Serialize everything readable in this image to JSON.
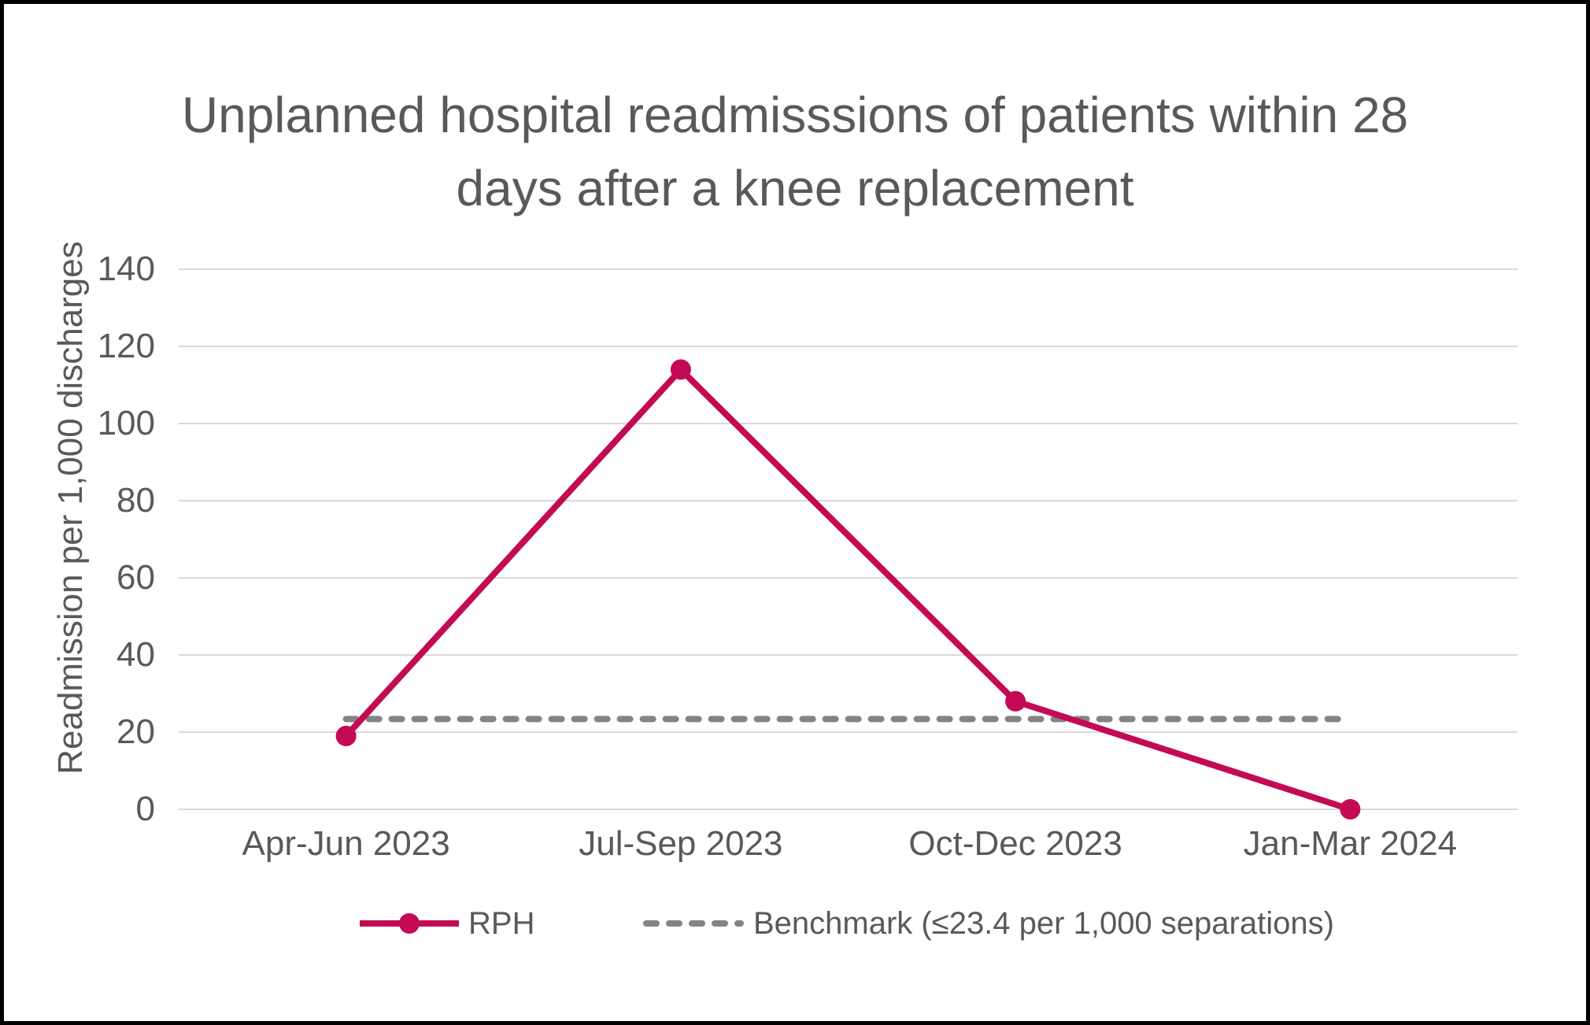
{
  "page": {
    "background": "#FFFFFF",
    "border_color": "#000000"
  },
  "colors": {
    "series_rph": "#C40A52",
    "benchmark": "#848484",
    "gridline": "#D9D9D9",
    "text": "#595959"
  },
  "chart_data": {
    "type": "line",
    "title": "Unplanned hospital readmisssions of patients within 28 days after a knee replacement",
    "xlabel": "",
    "ylabel": "Readmission per 1,000 discharges",
    "categories": [
      "Apr-Jun 2023",
      "Jul-Sep 2023",
      "Oct-Dec 2023",
      "Jan-Mar 2024"
    ],
    "series": [
      {
        "name": "RPH",
        "color": "#C40A52",
        "marker": "circle",
        "line_style": "solid",
        "values": [
          19,
          114,
          28,
          0
        ]
      },
      {
        "name": "Benchmark (≤23.4 per 1,000 separations)",
        "color": "#848484",
        "marker": "none",
        "line_style": "dashed",
        "values": [
          23.4,
          23.4,
          23.4,
          23.4
        ]
      }
    ],
    "benchmark_value": 23.4,
    "ylim": [
      0,
      140
    ],
    "yticks": [
      0,
      20,
      40,
      60,
      80,
      100,
      120,
      140
    ],
    "grid": "horizontal",
    "legend_position": "bottom"
  }
}
